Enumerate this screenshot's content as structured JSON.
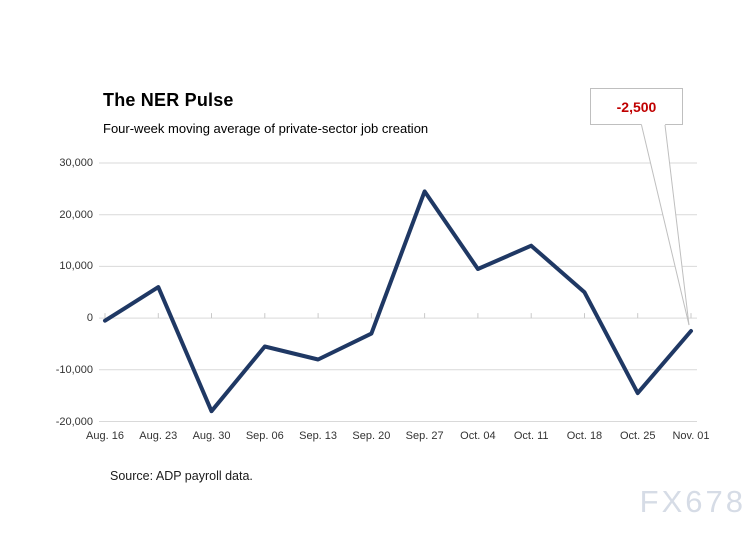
{
  "page": {
    "title": "The NER Pulse",
    "subtitle": "Four-week moving average of private-sector job creation",
    "source": "Source: ADP payroll data.",
    "watermark": "FX678"
  },
  "callout": {
    "label": "-2,500",
    "text_color": "#c00000"
  },
  "colors": {
    "series_line": "#1f3864",
    "gridline": "#d9d9d9",
    "callout_border": "#bfbfbf",
    "axis_text": "#333333",
    "watermark": "#d6dce6",
    "background": "#ffffff"
  },
  "chart_data": {
    "type": "line",
    "title": "The NER Pulse",
    "subtitle": "Four-week moving average of private-sector job creation",
    "categories": [
      "Aug. 16",
      "Aug. 23",
      "Aug. 30",
      "Sep. 06",
      "Sep. 13",
      "Sep. 20",
      "Sep. 27",
      "Oct. 04",
      "Oct. 11",
      "Oct. 18",
      "Oct. 25",
      "Nov. 01"
    ],
    "values": [
      -500,
      6000,
      -18000,
      -5500,
      -8000,
      -3000,
      24500,
      9500,
      14000,
      5000,
      -14500,
      -2500
    ],
    "xlabel": "",
    "ylabel": "",
    "ylim": [
      -20000,
      30000
    ],
    "ytick_values": [
      30000,
      20000,
      10000,
      0,
      -10000,
      -20000
    ],
    "ytick_labels": [
      "30,000",
      "20,000",
      "10,000",
      "0",
      "-10,000",
      "-20,000"
    ],
    "grid": "horizontal",
    "legend": "none",
    "annotation": {
      "category": "Nov. 01",
      "index": 11,
      "label": "-2,500"
    },
    "source": "Source: ADP payroll data."
  }
}
